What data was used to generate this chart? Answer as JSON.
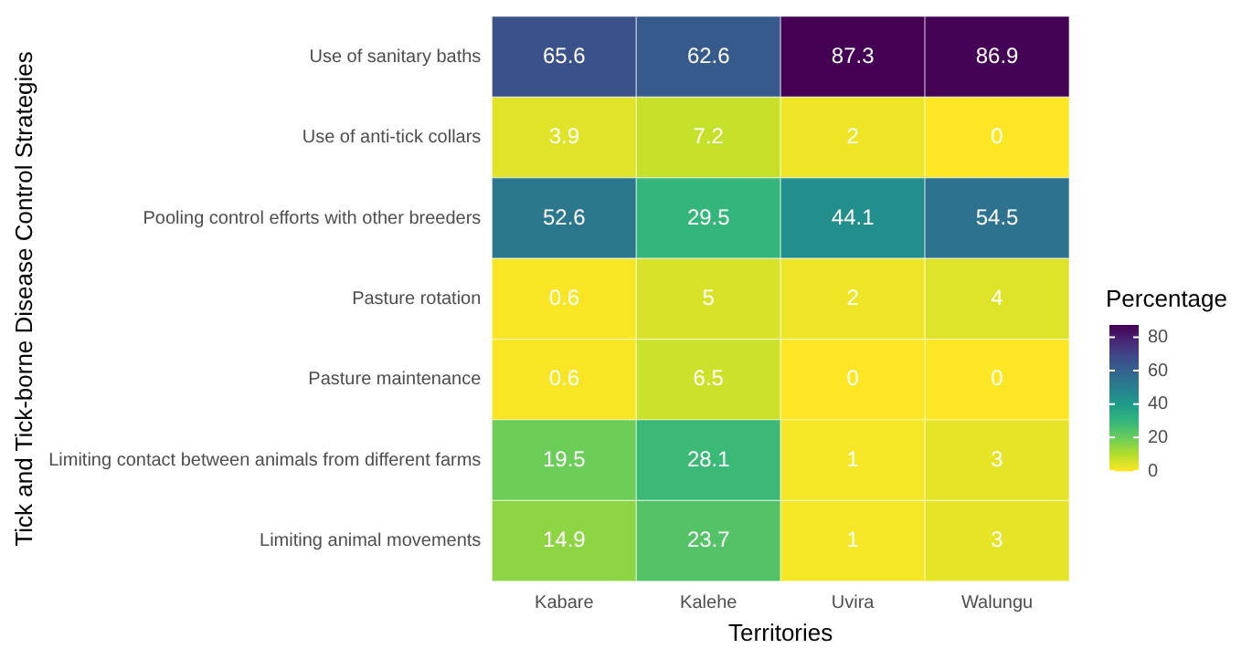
{
  "chart_data": {
    "type": "heatmap",
    "xlabel": "Territories",
    "ylabel": "Tick and Tick-borne Disease Control Strategies",
    "clabel": "Percentage",
    "categories": [
      "Kabare",
      "Kalehe",
      "Uvira",
      "Walungu"
    ],
    "y_categories": [
      "Use of sanitary baths",
      "Use of anti-tick collars",
      "Pooling control efforts with other breeders",
      "Pasture rotation",
      "Pasture maintenance",
      "Limiting contact between animals from different farms",
      "Limiting animal movements"
    ],
    "cells": [
      [
        65.6,
        62.6,
        87.3,
        86.9
      ],
      [
        3.9,
        7.2,
        2,
        0
      ],
      [
        52.6,
        29.5,
        44.1,
        54.5
      ],
      [
        0.6,
        5,
        2,
        4
      ],
      [
        0.6,
        6.5,
        0,
        0
      ],
      [
        19.5,
        28.1,
        1,
        3
      ],
      [
        14.9,
        23.7,
        1,
        3
      ]
    ],
    "clim": [
      0,
      87.3
    ],
    "cticks": [
      0,
      20,
      40,
      60,
      80
    ],
    "data_labels": true,
    "grid": false
  }
}
